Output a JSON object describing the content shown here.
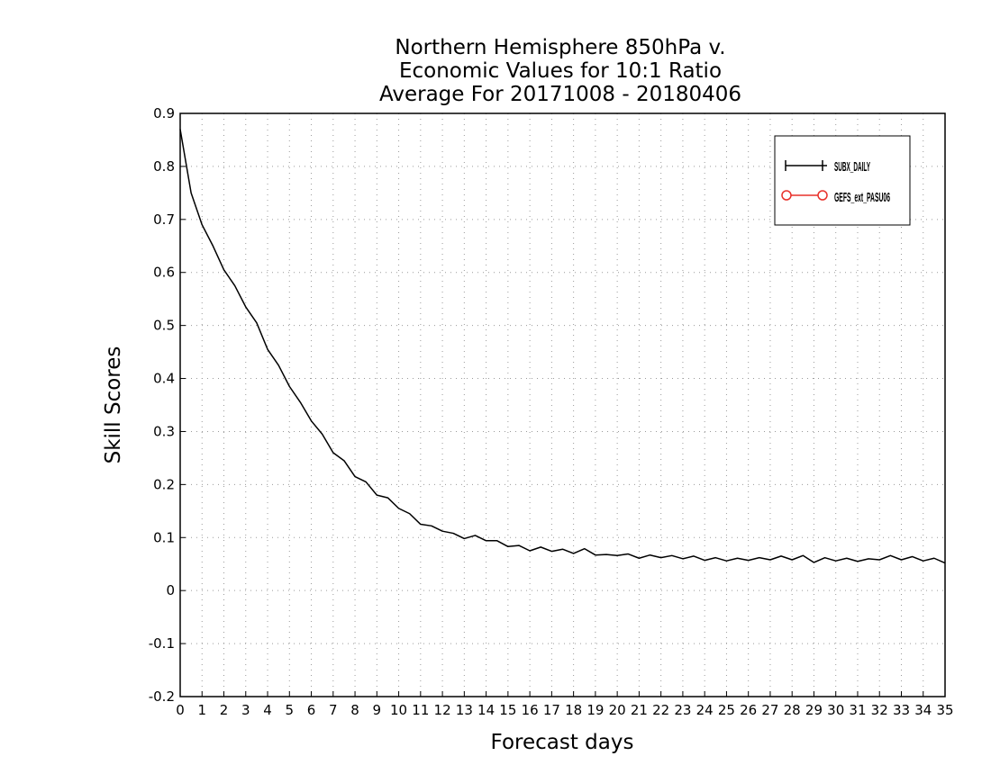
{
  "chart_data": {
    "type": "line",
    "title": [
      "Northern Hemisphere 850hPa v.",
      "Economic Values for 10:1 Ratio",
      "Average For 20171008 - 20180406"
    ],
    "xlabel": "Forecast days",
    "ylabel": "Skill Scores",
    "xlim": [
      0,
      35
    ],
    "ylim": [
      -0.2,
      0.9
    ],
    "x_ticks": [
      0,
      1,
      2,
      3,
      4,
      5,
      6,
      7,
      8,
      9,
      10,
      11,
      12,
      13,
      14,
      15,
      16,
      17,
      18,
      19,
      20,
      21,
      22,
      23,
      24,
      25,
      26,
      27,
      28,
      29,
      30,
      31,
      32,
      33,
      34,
      35
    ],
    "y_ticks": [
      -0.2,
      -0.1,
      0,
      0.1,
      0.2,
      0.3,
      0.4,
      0.5,
      0.6,
      0.7,
      0.8,
      0.9
    ],
    "grid": true,
    "legend_position": "top-right",
    "series": [
      {
        "name": "SUBX_DAILY",
        "color": "#000000",
        "marker": "plus",
        "x": [
          0,
          0.5,
          1,
          1.5,
          2,
          2.5,
          3,
          3.5,
          4,
          4.5,
          5,
          5.5,
          6,
          6.5,
          7,
          7.5,
          8,
          8.5,
          9,
          9.5,
          10,
          10.5,
          11,
          11.5,
          12,
          12.5,
          13,
          13.5,
          14,
          14.5,
          15,
          15.5,
          16,
          16.5,
          17,
          17.5,
          18,
          18.5,
          19,
          19.5,
          20,
          20.5,
          21,
          21.5,
          22,
          22.5,
          23,
          23.5,
          24,
          24.5,
          25,
          25.5,
          26,
          26.5,
          27,
          27.5,
          28,
          28.5,
          29,
          29.5,
          30,
          30.5,
          31,
          31.5,
          32,
          32.5,
          33,
          33.5,
          34,
          34.5,
          35
        ],
        "values": [
          0.87,
          0.75,
          0.69,
          0.65,
          0.605,
          0.575,
          0.535,
          0.505,
          0.455,
          0.425,
          0.385,
          0.355,
          0.32,
          0.295,
          0.26,
          0.245,
          0.215,
          0.205,
          0.18,
          0.175,
          0.155,
          0.145,
          0.125,
          0.122,
          0.112,
          0.108,
          0.098,
          0.104,
          0.094,
          0.094,
          0.083,
          0.085,
          0.075,
          0.082,
          0.074,
          0.078,
          0.07,
          0.079,
          0.067,
          0.068,
          0.066,
          0.069,
          0.061,
          0.067,
          0.062,
          0.066,
          0.06,
          0.065,
          0.057,
          0.062,
          0.056,
          0.061,
          0.057,
          0.062,
          0.058,
          0.065,
          0.058,
          0.066,
          0.053,
          0.062,
          0.056,
          0.061,
          0.055,
          0.06,
          0.058,
          0.066,
          0.058,
          0.064,
          0.056,
          0.061,
          0.052
        ]
      },
      {
        "name": "GEFS_ext_PASU06",
        "color": "#e8302a",
        "marker": "circle",
        "x": [],
        "values": []
      }
    ]
  }
}
